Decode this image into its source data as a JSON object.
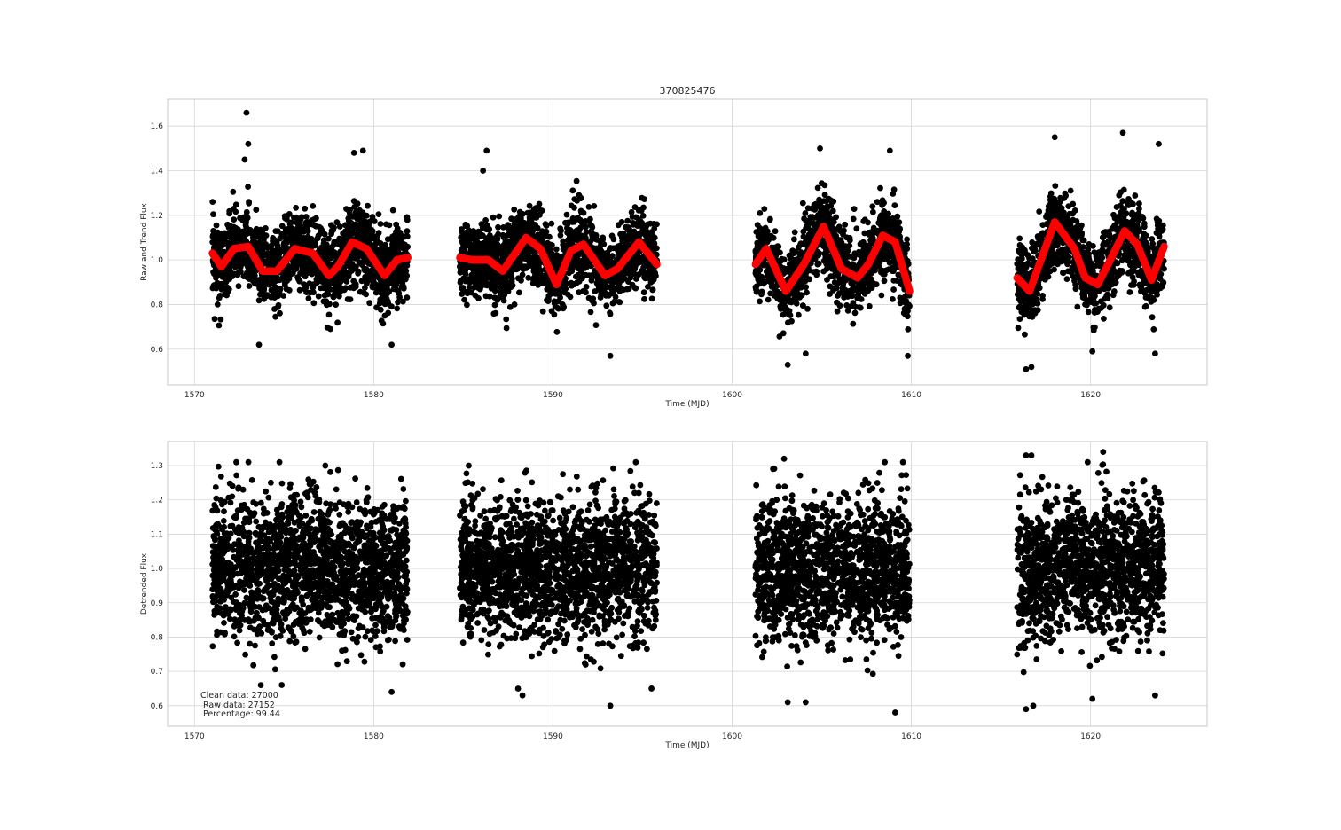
{
  "figure": {
    "title": "370825476"
  },
  "chart_data": [
    {
      "type": "scatter",
      "title": "370825476",
      "xlabel": "Time (MJD)",
      "ylabel": "Raw and Trend Flux",
      "xlim": [
        1568.5,
        1626.5
      ],
      "ylim": [
        0.44,
        1.72
      ],
      "xticks": [
        1570,
        1580,
        1590,
        1600,
        1610,
        1620
      ],
      "yticks": [
        0.6,
        0.8,
        1.0,
        1.2,
        1.4,
        1.6
      ],
      "grid": true,
      "segments": [
        {
          "x_start": 1571.0,
          "x_end": 1581.9
        },
        {
          "x_start": 1584.8,
          "x_end": 1595.8
        },
        {
          "x_start": 1601.3,
          "x_end": 1609.9
        },
        {
          "x_start": 1615.9,
          "x_end": 1624.1
        }
      ],
      "series": [
        {
          "color": "#000000",
          "marker": "circle",
          "scatter_half_width": 0.22,
          "outliers": [
            {
              "x": 1572.9,
              "y": 1.66
            },
            {
              "x": 1573.0,
              "y": 1.52
            },
            {
              "x": 1572.8,
              "y": 1.45
            },
            {
              "x": 1578.9,
              "y": 1.48
            },
            {
              "x": 1579.4,
              "y": 1.49
            },
            {
              "x": 1586.3,
              "y": 1.49
            },
            {
              "x": 1586.1,
              "y": 1.4
            },
            {
              "x": 1604.9,
              "y": 1.5
            },
            {
              "x": 1608.8,
              "y": 1.49
            },
            {
              "x": 1618.0,
              "y": 1.55
            },
            {
              "x": 1621.8,
              "y": 1.57
            },
            {
              "x": 1623.8,
              "y": 1.52
            },
            {
              "x": 1573.6,
              "y": 0.62
            },
            {
              "x": 1581.0,
              "y": 0.62
            },
            {
              "x": 1593.2,
              "y": 0.57
            },
            {
              "x": 1603.1,
              "y": 0.53
            },
            {
              "x": 1604.1,
              "y": 0.58
            },
            {
              "x": 1609.8,
              "y": 0.57
            },
            {
              "x": 1616.4,
              "y": 0.51
            },
            {
              "x": 1616.7,
              "y": 0.52
            },
            {
              "x": 1620.1,
              "y": 0.59
            },
            {
              "x": 1623.6,
              "y": 0.58
            }
          ]
        },
        {
          "color": "#ff0000",
          "marker": "circle",
          "trend": [
            {
              "x": 1571.0,
              "y": 1.03
            },
            {
              "x": 1571.5,
              "y": 0.97
            },
            {
              "x": 1572.2,
              "y": 1.05
            },
            {
              "x": 1573.0,
              "y": 1.06
            },
            {
              "x": 1573.8,
              "y": 0.95
            },
            {
              "x": 1574.6,
              "y": 0.95
            },
            {
              "x": 1575.6,
              "y": 1.05
            },
            {
              "x": 1576.6,
              "y": 1.03
            },
            {
              "x": 1577.5,
              "y": 0.93
            },
            {
              "x": 1578.0,
              "y": 0.97
            },
            {
              "x": 1578.8,
              "y": 1.08
            },
            {
              "x": 1579.6,
              "y": 1.05
            },
            {
              "x": 1580.6,
              "y": 0.93
            },
            {
              "x": 1581.3,
              "y": 1.0
            },
            {
              "x": 1581.9,
              "y": 1.01
            },
            {
              "x": 1584.8,
              "y": 1.01
            },
            {
              "x": 1585.5,
              "y": 1.0
            },
            {
              "x": 1586.4,
              "y": 1.0
            },
            {
              "x": 1587.2,
              "y": 0.95
            },
            {
              "x": 1588.5,
              "y": 1.1
            },
            {
              "x": 1589.3,
              "y": 1.05
            },
            {
              "x": 1590.2,
              "y": 0.89
            },
            {
              "x": 1591.0,
              "y": 1.04
            },
            {
              "x": 1591.7,
              "y": 1.07
            },
            {
              "x": 1592.9,
              "y": 0.93
            },
            {
              "x": 1593.6,
              "y": 0.96
            },
            {
              "x": 1594.8,
              "y": 1.08
            },
            {
              "x": 1595.8,
              "y": 0.98
            },
            {
              "x": 1601.3,
              "y": 0.98
            },
            {
              "x": 1601.9,
              "y": 1.05
            },
            {
              "x": 1603.0,
              "y": 0.86
            },
            {
              "x": 1604.0,
              "y": 0.98
            },
            {
              "x": 1605.1,
              "y": 1.15
            },
            {
              "x": 1606.1,
              "y": 0.96
            },
            {
              "x": 1607.0,
              "y": 0.92
            },
            {
              "x": 1607.6,
              "y": 0.98
            },
            {
              "x": 1608.4,
              "y": 1.11
            },
            {
              "x": 1609.1,
              "y": 1.08
            },
            {
              "x": 1609.9,
              "y": 0.86
            },
            {
              "x": 1615.9,
              "y": 0.92
            },
            {
              "x": 1616.6,
              "y": 0.86
            },
            {
              "x": 1618.0,
              "y": 1.17
            },
            {
              "x": 1619.1,
              "y": 1.05
            },
            {
              "x": 1619.7,
              "y": 0.92
            },
            {
              "x": 1620.4,
              "y": 0.89
            },
            {
              "x": 1621.1,
              "y": 1.0
            },
            {
              "x": 1621.9,
              "y": 1.13
            },
            {
              "x": 1622.6,
              "y": 1.07
            },
            {
              "x": 1623.4,
              "y": 0.91
            },
            {
              "x": 1624.1,
              "y": 1.06
            }
          ]
        }
      ]
    },
    {
      "type": "scatter",
      "xlabel": "Time (MJD)",
      "ylabel": "Detrended Flux",
      "xlim": [
        1568.5,
        1626.5
      ],
      "ylim": [
        0.54,
        1.37
      ],
      "xticks": [
        1570,
        1580,
        1590,
        1600,
        1610,
        1620
      ],
      "yticks": [
        0.6,
        0.7,
        0.8,
        0.9,
        1.0,
        1.1,
        1.2,
        1.3
      ],
      "grid": true,
      "segments": [
        {
          "x_start": 1571.0,
          "x_end": 1581.9
        },
        {
          "x_start": 1584.8,
          "x_end": 1595.8
        },
        {
          "x_start": 1601.3,
          "x_end": 1609.9
        },
        {
          "x_start": 1615.9,
          "x_end": 1624.1
        }
      ],
      "series": [
        {
          "color": "#000000",
          "marker": "circle",
          "center": 1.0,
          "dense_band": [
            0.8,
            1.2
          ],
          "outer_band": [
            0.65,
            1.31
          ],
          "outliers": [
            {
              "x": 1593.2,
              "y": 0.6
            },
            {
              "x": 1603.1,
              "y": 0.61
            },
            {
              "x": 1604.1,
              "y": 0.61
            },
            {
              "x": 1609.1,
              "y": 0.58
            },
            {
              "x": 1616.4,
              "y": 0.59
            },
            {
              "x": 1616.8,
              "y": 0.6
            },
            {
              "x": 1588.3,
              "y": 0.63
            },
            {
              "x": 1620.1,
              "y": 0.62
            },
            {
              "x": 1623.6,
              "y": 0.63
            },
            {
              "x": 1573.7,
              "y": 0.66
            },
            {
              "x": 1581.0,
              "y": 0.64
            },
            {
              "x": 1595.5,
              "y": 0.65
            },
            {
              "x": 1602.9,
              "y": 1.32
            },
            {
              "x": 1616.4,
              "y": 1.33
            },
            {
              "x": 1616.7,
              "y": 1.33
            },
            {
              "x": 1620.7,
              "y": 1.34
            },
            {
              "x": 1585.3,
              "y": 1.3
            },
            {
              "x": 1577.3,
              "y": 1.3
            }
          ]
        }
      ],
      "annotation": [
        "Clean data: 27000",
        "Raw data: 27152",
        "Percentage: 99.44"
      ]
    }
  ]
}
